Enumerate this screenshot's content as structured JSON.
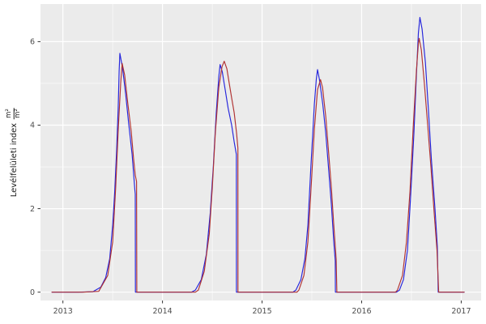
{
  "chart_data": {
    "type": "line",
    "title": "",
    "xlabel": "",
    "ylabel_text": "Levélfelületi index",
    "ylabel_frac_num": "m²",
    "ylabel_frac_den": "m²",
    "xlim": [
      2012.775,
      2017.2
    ],
    "ylim": [
      -0.2,
      6.9
    ],
    "x_ticks": [
      2013,
      2014,
      2015,
      2016,
      2017
    ],
    "x_minor_ticks": [
      2013.5,
      2014.5,
      2015.5,
      2016.5
    ],
    "y_ticks": [
      0,
      2,
      4,
      6
    ],
    "y_minor_ticks": [
      1,
      3,
      5
    ],
    "grid": true,
    "legend": "none",
    "panel_bg": "#EBEBEB",
    "grid_color": "#FFFFFF",
    "tick_mark_color": "#333333",
    "tick_text_color": "#4D4D4D",
    "series": [
      {
        "name": "series-blue",
        "color": "#2424DC",
        "points": [
          [
            2012.89,
            0
          ],
          [
            2013.15,
            0
          ],
          [
            2013.3,
            0.01
          ],
          [
            2013.38,
            0.12
          ],
          [
            2013.43,
            0.35
          ],
          [
            2013.47,
            0.8
          ],
          [
            2013.5,
            1.6
          ],
          [
            2013.52,
            2.4
          ],
          [
            2013.54,
            3.4
          ],
          [
            2013.555,
            4.4
          ],
          [
            2013.565,
            5.3
          ],
          [
            2013.572,
            5.72
          ],
          [
            2013.6,
            5.35
          ],
          [
            2013.63,
            4.75
          ],
          [
            2013.66,
            4.05
          ],
          [
            2013.695,
            3.3
          ],
          [
            2013.723,
            2.45
          ],
          [
            2013.727,
            2.35
          ],
          [
            2013.728,
            0
          ],
          [
            2013.85,
            0
          ],
          [
            2014.1,
            0
          ],
          [
            2014.29,
            0
          ],
          [
            2014.33,
            0.05
          ],
          [
            2014.39,
            0.3
          ],
          [
            2014.44,
            0.9
          ],
          [
            2014.48,
            1.9
          ],
          [
            2014.51,
            3.0
          ],
          [
            2014.54,
            4.3
          ],
          [
            2014.565,
            5.15
          ],
          [
            2014.578,
            5.45
          ],
          [
            2014.6,
            5.28
          ],
          [
            2014.63,
            4.85
          ],
          [
            2014.66,
            4.4
          ],
          [
            2014.695,
            4.0
          ],
          [
            2014.72,
            3.6
          ],
          [
            2014.742,
            3.3
          ],
          [
            2014.743,
            0
          ],
          [
            2014.9,
            0
          ],
          [
            2015.15,
            0
          ],
          [
            2015.31,
            0
          ],
          [
            2015.34,
            0.05
          ],
          [
            2015.39,
            0.3
          ],
          [
            2015.43,
            0.8
          ],
          [
            2015.46,
            1.6
          ],
          [
            2015.49,
            3.0
          ],
          [
            2015.525,
            4.5
          ],
          [
            2015.545,
            5.1
          ],
          [
            2015.557,
            5.33
          ],
          [
            2015.576,
            5.1
          ],
          [
            2015.61,
            4.5
          ],
          [
            2015.64,
            3.8
          ],
          [
            2015.67,
            2.9
          ],
          [
            2015.696,
            2.1
          ],
          [
            2015.72,
            1.2
          ],
          [
            2015.735,
            0.75
          ],
          [
            2015.737,
            0
          ],
          [
            2015.9,
            0
          ],
          [
            2016.15,
            0
          ],
          [
            2016.35,
            0
          ],
          [
            2016.38,
            0.05
          ],
          [
            2016.42,
            0.3
          ],
          [
            2016.46,
            1.0
          ],
          [
            2016.49,
            2.2
          ],
          [
            2016.525,
            3.8
          ],
          [
            2016.55,
            5.2
          ],
          [
            2016.57,
            6.2
          ],
          [
            2016.585,
            6.58
          ],
          [
            2016.607,
            6.3
          ],
          [
            2016.64,
            5.5
          ],
          [
            2016.67,
            4.4
          ],
          [
            2016.7,
            3.2
          ],
          [
            2016.736,
            2.0
          ],
          [
            2016.76,
            1.1
          ],
          [
            2016.769,
            0
          ],
          [
            2016.9,
            0
          ],
          [
            2017.03,
            0
          ]
        ]
      },
      {
        "name": "series-red",
        "color": "#B03232",
        "points": [
          [
            2012.89,
            0
          ],
          [
            2013.2,
            0
          ],
          [
            2013.36,
            0.02
          ],
          [
            2013.45,
            0.4
          ],
          [
            2013.5,
            1.2
          ],
          [
            2013.53,
            2.5
          ],
          [
            2013.556,
            3.9
          ],
          [
            2013.58,
            5.0
          ],
          [
            2013.595,
            5.48
          ],
          [
            2013.62,
            5.2
          ],
          [
            2013.65,
            4.55
          ],
          [
            2013.686,
            3.85
          ],
          [
            2013.71,
            3.2
          ],
          [
            2013.727,
            2.8
          ],
          [
            2013.74,
            2.65
          ],
          [
            2013.742,
            0
          ],
          [
            2013.9,
            0
          ],
          [
            2014.15,
            0
          ],
          [
            2014.33,
            0
          ],
          [
            2014.36,
            0.05
          ],
          [
            2014.42,
            0.5
          ],
          [
            2014.47,
            1.4
          ],
          [
            2014.5,
            2.5
          ],
          [
            2014.53,
            3.8
          ],
          [
            2014.565,
            4.9
          ],
          [
            2014.598,
            5.4
          ],
          [
            2014.62,
            5.53
          ],
          [
            2014.647,
            5.35
          ],
          [
            2014.67,
            5.0
          ],
          [
            2014.695,
            4.65
          ],
          [
            2014.72,
            4.3
          ],
          [
            2014.744,
            3.8
          ],
          [
            2014.757,
            3.45
          ],
          [
            2014.758,
            0
          ],
          [
            2014.9,
            0
          ],
          [
            2015.15,
            0
          ],
          [
            2015.35,
            0
          ],
          [
            2015.37,
            0.05
          ],
          [
            2015.42,
            0.4
          ],
          [
            2015.46,
            1.2
          ],
          [
            2015.49,
            2.4
          ],
          [
            2015.525,
            3.9
          ],
          [
            2015.557,
            4.85
          ],
          [
            2015.587,
            5.09
          ],
          [
            2015.607,
            4.9
          ],
          [
            2015.64,
            4.2
          ],
          [
            2015.67,
            3.3
          ],
          [
            2015.696,
            2.5
          ],
          [
            2015.72,
            1.6
          ],
          [
            2015.744,
            0.8
          ],
          [
            2015.751,
            0
          ],
          [
            2015.9,
            0
          ],
          [
            2016.15,
            0
          ],
          [
            2016.34,
            0
          ],
          [
            2016.36,
            0.05
          ],
          [
            2016.41,
            0.4
          ],
          [
            2016.45,
            1.2
          ],
          [
            2016.485,
            2.4
          ],
          [
            2016.517,
            3.9
          ],
          [
            2016.55,
            5.3
          ],
          [
            2016.57,
            5.95
          ],
          [
            2016.578,
            6.08
          ],
          [
            2016.6,
            5.8
          ],
          [
            2016.63,
            5.0
          ],
          [
            2016.663,
            4.0
          ],
          [
            2016.696,
            3.0
          ],
          [
            2016.728,
            1.9
          ],
          [
            2016.757,
            1.0
          ],
          [
            2016.774,
            0
          ],
          [
            2016.92,
            0
          ],
          [
            2017.03,
            0
          ]
        ]
      }
    ]
  }
}
